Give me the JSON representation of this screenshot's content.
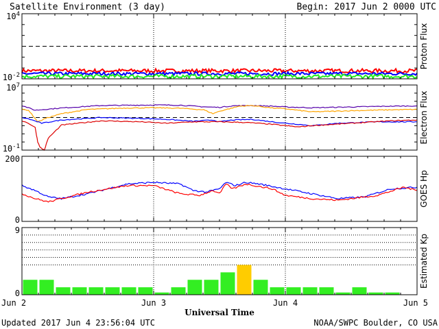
{
  "header": {
    "title": "Satellite Environment (3 day)",
    "begin": "Begin:  2017 Jun 2 0000 UTC"
  },
  "footer": {
    "updated": "Updated 2017 Jun  4 23:56:04 UTC",
    "credit": "NOAA/SWPC Boulder, CO USA"
  },
  "colors": {
    "red": "#ff0000",
    "blue": "#0000ff",
    "green": "#22ee22",
    "purple": "#5500aa",
    "orange": "#ffa500",
    "darkred": "#dd0000",
    "kp_green": "#33ee22",
    "kp_yellow": "#ffcc00"
  },
  "chart_data": [
    {
      "type": "line",
      "id": "proton",
      "ylabel": "Proton Flux",
      "yscale": "log",
      "ylim": [
        0.01,
        10000
      ],
      "ytick_labels": [
        {
          "base": "10",
          "exp": "4",
          "value": 10000
        },
        {
          "base": "10",
          "exp": "-2",
          "value": 0.01
        }
      ],
      "threshold": 10,
      "x_range_days": [
        0,
        3
      ],
      "series": [
        {
          "color_key": "red",
          "base": 0.055,
          "noise": 0.35
        },
        {
          "color_key": "blue",
          "base": 0.03,
          "noise": 0.3
        },
        {
          "color_key": "green",
          "base": 0.017,
          "noise": 0.35
        }
      ]
    },
    {
      "type": "line",
      "id": "electron",
      "ylabel": "Electron Flux",
      "yscale": "log",
      "ylim": [
        0.1,
        10000000
      ],
      "ytick_labels": [
        {
          "base": "10",
          "exp": "7",
          "value": 10000000
        },
        {
          "base": "10",
          "exp": "-1",
          "value": 0.1
        }
      ],
      "threshold": 1000,
      "x_range_days": [
        0,
        3
      ],
      "series": [
        {
          "color_key": "purple",
          "points": [
            [
              0,
              30000
            ],
            [
              0.1,
              8000
            ],
            [
              0.3,
              15000
            ],
            [
              0.6,
              30000
            ],
            [
              1.0,
              35000
            ],
            [
              1.2,
              33000
            ],
            [
              1.4,
              20000
            ],
            [
              1.5,
              18000
            ],
            [
              1.6,
              28000
            ],
            [
              1.75,
              30000
            ],
            [
              1.9,
              25000
            ],
            [
              2.0,
              20000
            ],
            [
              2.2,
              16000
            ],
            [
              2.5,
              20000
            ],
            [
              2.8,
              25000
            ],
            [
              3,
              27000
            ]
          ]
        },
        {
          "color_key": "orange",
          "points": [
            [
              0,
              10000
            ],
            [
              0.05,
              8000
            ],
            [
              0.12,
              300
            ],
            [
              0.18,
              800
            ],
            [
              0.3,
              3000
            ],
            [
              0.5,
              10000
            ],
            [
              0.8,
              15000
            ],
            [
              1.0,
              16000
            ],
            [
              1.2,
              14000
            ],
            [
              1.38,
              9000
            ],
            [
              1.45,
              3000
            ],
            [
              1.5,
              6000
            ],
            [
              1.65,
              25000
            ],
            [
              1.75,
              30000
            ],
            [
              1.9,
              15000
            ],
            [
              2.0,
              12000
            ],
            [
              2.2,
              5000
            ],
            [
              2.5,
              7000
            ],
            [
              2.8,
              9000
            ],
            [
              3,
              10000
            ]
          ]
        },
        {
          "color_key": "blue",
          "points": [
            [
              0,
              1000
            ],
            [
              0.05,
              700
            ],
            [
              0.15,
              200
            ],
            [
              0.3,
              500
            ],
            [
              0.6,
              1000
            ],
            [
              0.9,
              800
            ],
            [
              1.1,
              600
            ],
            [
              1.3,
              350
            ],
            [
              1.45,
              500
            ],
            [
              1.5,
              300
            ],
            [
              1.6,
              500
            ],
            [
              1.75,
              600
            ],
            [
              1.9,
              300
            ],
            [
              2.0,
              200
            ],
            [
              2.1,
              150
            ],
            [
              2.2,
              100
            ],
            [
              2.4,
              200
            ],
            [
              2.7,
              300
            ],
            [
              3,
              300
            ]
          ]
        },
        {
          "color_key": "darkred",
          "points": [
            [
              0,
              400
            ],
            [
              0.05,
              200
            ],
            [
              0.1,
              60
            ],
            [
              0.12,
              1
            ],
            [
              0.14,
              0.2
            ],
            [
              0.17,
              0.1
            ],
            [
              0.2,
              3
            ],
            [
              0.3,
              120
            ],
            [
              0.6,
              400
            ],
            [
              0.9,
              300
            ],
            [
              1.1,
              200
            ],
            [
              1.3,
              300
            ],
            [
              1.5,
              300
            ],
            [
              1.7,
              250
            ],
            [
              1.9,
              150
            ],
            [
              2.0,
              100
            ],
            [
              2.1,
              70
            ],
            [
              2.2,
              100
            ],
            [
              2.5,
              200
            ],
            [
              2.8,
              400
            ],
            [
              3,
              500
            ]
          ]
        }
      ]
    },
    {
      "type": "line",
      "id": "hp",
      "ylabel": "GOES Hp",
      "yscale": "linear",
      "ylim": [
        0,
        200
      ],
      "ytick_labels": [
        {
          "base": "200",
          "value": 200
        },
        {
          "base": "0",
          "value": 0
        }
      ],
      "x_range_days": [
        0,
        3
      ],
      "series": [
        {
          "color_key": "blue",
          "points": [
            [
              0,
              110
            ],
            [
              0.1,
              95
            ],
            [
              0.2,
              75
            ],
            [
              0.3,
              70
            ],
            [
              0.5,
              85
            ],
            [
              0.8,
              115
            ],
            [
              1.0,
              120
            ],
            [
              1.2,
              115
            ],
            [
              1.3,
              95
            ],
            [
              1.4,
              90
            ],
            [
              1.5,
              100
            ],
            [
              1.55,
              120
            ],
            [
              1.62,
              110
            ],
            [
              1.7,
              120
            ],
            [
              1.8,
              115
            ],
            [
              2.0,
              100
            ],
            [
              2.2,
              85
            ],
            [
              2.4,
              70
            ],
            [
              2.6,
              75
            ],
            [
              2.8,
              100
            ],
            [
              3,
              105
            ]
          ]
        },
        {
          "color_key": "red",
          "points": [
            [
              0,
              85
            ],
            [
              0.1,
              70
            ],
            [
              0.2,
              60
            ],
            [
              0.3,
              70
            ],
            [
              0.5,
              90
            ],
            [
              0.8,
              110
            ],
            [
              1.0,
              110
            ],
            [
              1.2,
              85
            ],
            [
              1.35,
              80
            ],
            [
              1.45,
              95
            ],
            [
              1.5,
              85
            ],
            [
              1.55,
              115
            ],
            [
              1.6,
              100
            ],
            [
              1.7,
              115
            ],
            [
              1.9,
              100
            ],
            [
              2.0,
              80
            ],
            [
              2.2,
              70
            ],
            [
              2.4,
              65
            ],
            [
              2.7,
              80
            ],
            [
              2.9,
              105
            ],
            [
              3,
              95
            ]
          ]
        }
      ]
    },
    {
      "type": "bar",
      "id": "kp",
      "ylabel": "Estimated Kp",
      "ylim": [
        0,
        9
      ],
      "ytick_labels": [
        {
          "base": "9",
          "value": 9
        },
        {
          "base": "0",
          "value": 0
        }
      ],
      "gridlines": [
        4,
        5,
        6,
        7,
        8,
        9
      ],
      "bar_hours": 3,
      "values": [
        2,
        2,
        1,
        1,
        1,
        1,
        1,
        1,
        0.3,
        1,
        2,
        2,
        3,
        4,
        2,
        1,
        1,
        1,
        1,
        0.3,
        1,
        0.3,
        0.3,
        0
      ],
      "storm_threshold": 4
    }
  ],
  "xaxis": {
    "label": "Universal Time",
    "ticks": [
      {
        "label": "Jun 2",
        "day": 0
      },
      {
        "label": "Jun 3",
        "day": 1
      },
      {
        "label": "Jun 4",
        "day": 2
      },
      {
        "label": "Jun 5",
        "day": 3
      }
    ]
  }
}
